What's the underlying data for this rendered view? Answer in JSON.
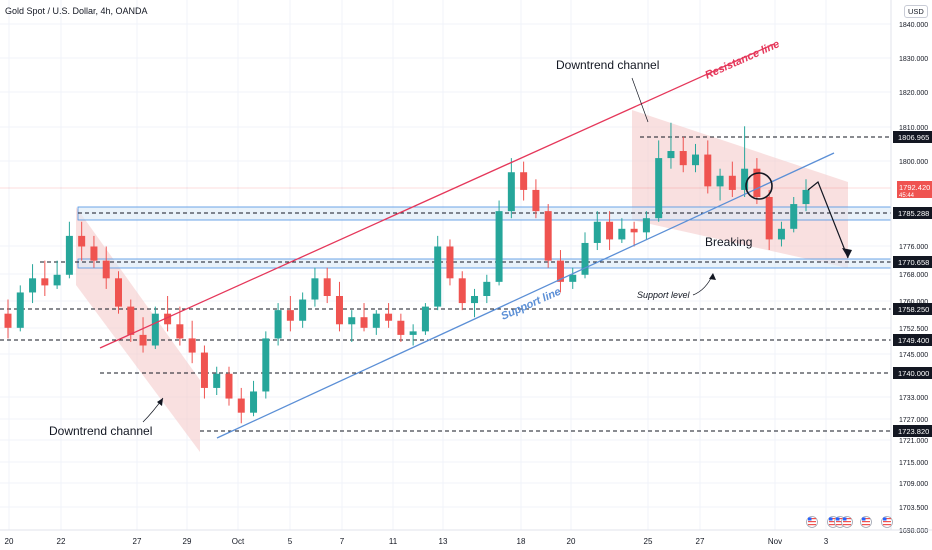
{
  "header": {
    "symbol_title": "Gold Spot / U.S. Dollar, 4h, OANDA",
    "currency_badge": "USD"
  },
  "colors": {
    "bull": "#26a69a",
    "bear": "#ef5350",
    "resistance": "#e5375a",
    "support": "#5b8fd6",
    "channel_fill": "#f4c7c7",
    "zone_fill": "#dbe9f7",
    "zone_border": "#4a90e2",
    "dark_label": "#131722"
  },
  "chart_data": {
    "type": "candlestick",
    "x_ticks": [
      "20",
      "22",
      "27",
      "29",
      "Oct",
      "5",
      "7",
      "11",
      "13",
      "18",
      "20",
      "25",
      "27",
      "Nov",
      "3"
    ],
    "price_axis_ticks": [
      1840.0,
      1830.0,
      1820.0,
      1810.0,
      1800.0,
      1776.0,
      1768.0,
      1760.0,
      1752.5,
      1745.0,
      1733.0,
      1727.0,
      1721.0,
      1715.0,
      1709.0,
      1703.5,
      1698.0
    ],
    "price_axis_tick_labels": [
      "1840.000",
      "1830.000",
      "1820.000",
      "1810.000",
      "1800.000",
      "1776.000",
      "1768.000",
      "1760.000",
      "1752.500",
      "1745.000",
      "1733.000",
      "1727.000",
      "1721.000",
      "1715.000",
      "1709.000",
      "1703.500",
      "1698.000"
    ],
    "horizontal_levels": [
      {
        "price": 1806.965,
        "label": "1806.965",
        "style": "dashed",
        "color": "#131722"
      },
      {
        "price": 1785.288,
        "label": "1785.288",
        "style": "dashed",
        "color": "#131722"
      },
      {
        "price": 1770.658,
        "label": "1770.658",
        "style": "dashed",
        "color": "#131722"
      },
      {
        "price": 1758.25,
        "label": "1758.250",
        "style": "dashed",
        "color": "#131722"
      },
      {
        "price": 1749.4,
        "label": "1749.400",
        "style": "dashed",
        "color": "#131722"
      },
      {
        "price": 1740.0,
        "label": "1740.000",
        "style": "dashed",
        "color": "#131722"
      },
      {
        "price": 1723.82,
        "label": "1723.820",
        "style": "dashed",
        "color": "#131722"
      }
    ],
    "current_price": {
      "price": 1792.42,
      "label": "1792.420",
      "sublabel": "45:44"
    },
    "annotations": {
      "downtrend_top": "Downtrend channel",
      "downtrend_bottom": "Downtrend channel",
      "resistance_line": "Resistance line",
      "support_line": "Support line",
      "support_level": "Support level",
      "breaking": "Breaking"
    },
    "candles": [
      [
        1757.0,
        1761.0,
        1750.0,
        1753.0
      ],
      [
        1753.0,
        1765.0,
        1752.0,
        1763.0
      ],
      [
        1763.0,
        1771.0,
        1760.0,
        1767.0
      ],
      [
        1767.0,
        1772.0,
        1762.0,
        1765.0
      ],
      [
        1765.0,
        1772.0,
        1764.0,
        1768.0
      ],
      [
        1768.0,
        1783.0,
        1767.0,
        1779.0
      ],
      [
        1779.0,
        1783.0,
        1772.0,
        1776.0
      ],
      [
        1776.0,
        1779.0,
        1770.0,
        1772.0
      ],
      [
        1772.0,
        1776.0,
        1764.0,
        1767.0
      ],
      [
        1767.0,
        1769.0,
        1757.0,
        1759.0
      ],
      [
        1759.0,
        1761.0,
        1749.0,
        1751.0
      ],
      [
        1751.0,
        1756.0,
        1746.0,
        1748.0
      ],
      [
        1748.0,
        1759.0,
        1747.0,
        1757.0
      ],
      [
        1757.0,
        1762.0,
        1752.0,
        1754.0
      ],
      [
        1754.0,
        1759.0,
        1748.0,
        1750.0
      ],
      [
        1750.0,
        1755.0,
        1743.0,
        1746.0
      ],
      [
        1746.0,
        1748.0,
        1733.0,
        1736.0
      ],
      [
        1736.0,
        1742.0,
        1734.0,
        1740.0
      ],
      [
        1740.0,
        1742.0,
        1731.0,
        1733.0
      ],
      [
        1733.0,
        1736.0,
        1726.0,
        1729.0
      ],
      [
        1729.0,
        1738.0,
        1728.0,
        1735.0
      ],
      [
        1735.0,
        1752.0,
        1733.0,
        1750.0
      ],
      [
        1750.0,
        1760.0,
        1748.0,
        1758.0
      ],
      [
        1758.0,
        1762.0,
        1752.0,
        1755.0
      ],
      [
        1755.0,
        1763.0,
        1753.0,
        1761.0
      ],
      [
        1761.0,
        1770.0,
        1759.0,
        1767.0
      ],
      [
        1767.0,
        1770.0,
        1760.0,
        1762.0
      ],
      [
        1762.0,
        1766.0,
        1752.0,
        1754.0
      ],
      [
        1754.0,
        1758.0,
        1749.0,
        1756.0
      ],
      [
        1756.0,
        1760.0,
        1752.0,
        1753.0
      ],
      [
        1753.0,
        1758.0,
        1751.0,
        1757.0
      ],
      [
        1757.0,
        1760.0,
        1753.0,
        1755.0
      ],
      [
        1755.0,
        1757.0,
        1749.0,
        1751.0
      ],
      [
        1751.0,
        1754.0,
        1748.0,
        1752.0
      ],
      [
        1752.0,
        1760.0,
        1751.0,
        1759.0
      ],
      [
        1759.0,
        1779.0,
        1758.0,
        1776.0
      ],
      [
        1776.0,
        1778.0,
        1765.0,
        1767.0
      ],
      [
        1767.0,
        1769.0,
        1758.0,
        1760.0
      ],
      [
        1760.0,
        1764.0,
        1756.0,
        1762.0
      ],
      [
        1762.0,
        1768.0,
        1760.0,
        1766.0
      ],
      [
        1766.0,
        1789.0,
        1765.0,
        1786.0
      ],
      [
        1786.0,
        1801.0,
        1784.0,
        1797.0
      ],
      [
        1797.0,
        1800.0,
        1789.0,
        1792.0
      ],
      [
        1792.0,
        1795.0,
        1784.0,
        1786.0
      ],
      [
        1786.0,
        1788.0,
        1770.0,
        1772.0
      ],
      [
        1772.0,
        1775.0,
        1763.0,
        1766.0
      ],
      [
        1766.0,
        1770.0,
        1764.0,
        1768.0
      ],
      [
        1768.0,
        1780.0,
        1767.0,
        1777.0
      ],
      [
        1777.0,
        1786.0,
        1775.0,
        1783.0
      ],
      [
        1783.0,
        1786.0,
        1775.0,
        1778.0
      ],
      [
        1778.0,
        1784.0,
        1777.0,
        1781.0
      ],
      [
        1781.0,
        1783.0,
        1776.0,
        1780.0
      ],
      [
        1780.0,
        1786.0,
        1778.0,
        1784.0
      ],
      [
        1784.0,
        1806.0,
        1783.0,
        1801.0
      ],
      [
        1801.0,
        1811.0,
        1798.0,
        1803.0
      ],
      [
        1803.0,
        1807.0,
        1797.0,
        1799.0
      ],
      [
        1799.0,
        1805.0,
        1797.0,
        1802.0
      ],
      [
        1802.0,
        1806.0,
        1791.0,
        1793.0
      ],
      [
        1793.0,
        1798.0,
        1789.0,
        1796.0
      ],
      [
        1796.0,
        1800.0,
        1790.0,
        1792.0
      ],
      [
        1792.0,
        1810.0,
        1790.0,
        1798.0
      ],
      [
        1798.0,
        1801.0,
        1788.0,
        1790.0
      ],
      [
        1790.0,
        1792.0,
        1775.0,
        1778.0
      ],
      [
        1778.0,
        1783.0,
        1776.0,
        1781.0
      ],
      [
        1781.0,
        1790.0,
        1780.0,
        1788.0
      ],
      [
        1788.0,
        1795.0,
        1786.0,
        1792.0
      ]
    ]
  }
}
